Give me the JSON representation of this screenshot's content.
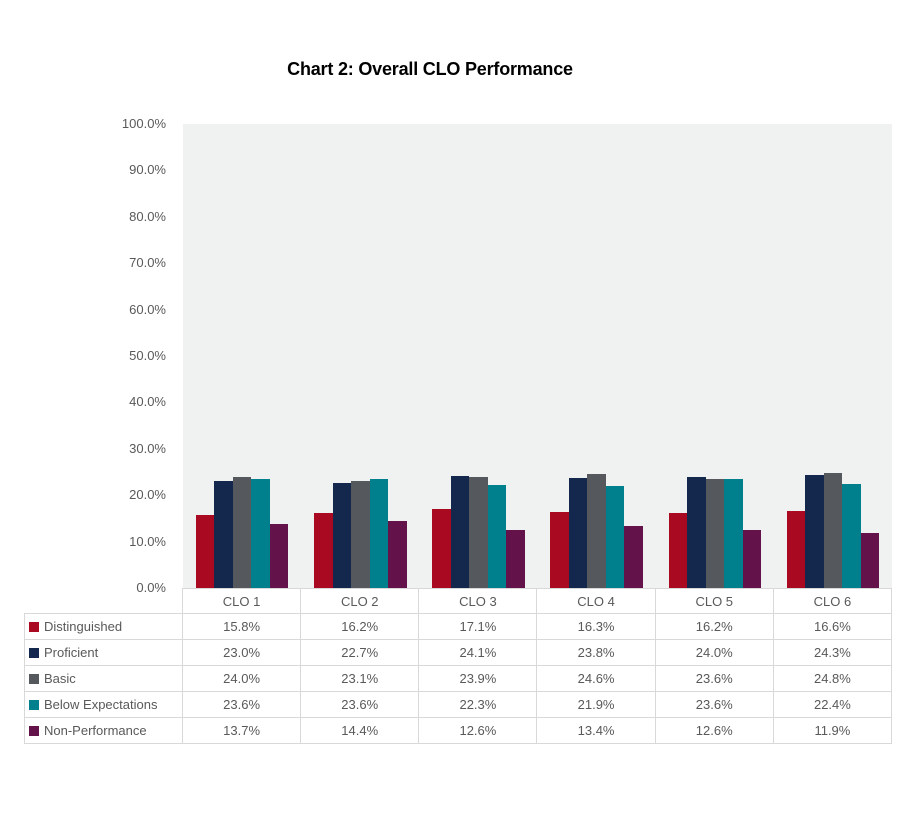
{
  "chart_data": {
    "type": "bar",
    "title": "Chart 2: Overall CLO Performance",
    "categories": [
      "CLO 1",
      "CLO 2",
      "CLO 3",
      "CLO 4",
      "CLO 5",
      "CLO 6"
    ],
    "series": [
      {
        "name": "Distinguished",
        "color": "#A90A21",
        "values": [
          15.8,
          16.2,
          17.1,
          16.3,
          16.2,
          16.6
        ]
      },
      {
        "name": "Proficient",
        "color": "#14274C",
        "values": [
          23.0,
          22.7,
          24.1,
          23.8,
          24.0,
          24.3
        ]
      },
      {
        "name": "Basic",
        "color": "#55585C",
        "values": [
          24.0,
          23.1,
          23.9,
          24.6,
          23.6,
          24.8
        ]
      },
      {
        "name": "Below Expectations",
        "color": "#00808D",
        "values": [
          23.6,
          23.6,
          22.3,
          21.9,
          23.6,
          22.4
        ]
      },
      {
        "name": "Non-Performance",
        "color": "#64124A",
        "values": [
          13.7,
          14.4,
          12.6,
          13.4,
          12.6,
          11.9
        ]
      }
    ],
    "y_ticks": [
      "100.0%",
      "90.0%",
      "80.0%",
      "70.0%",
      "60.0%",
      "50.0%",
      "40.0%",
      "30.0%",
      "20.0%",
      "10.0%",
      "0.0%"
    ],
    "ylim": [
      0,
      100
    ],
    "value_suffix": "%",
    "grid": false,
    "legend_position": "table-left-column",
    "plot_bg": "#F0F1F1",
    "axis_text_color": "#595959",
    "table_border_color": "#D9D9D9"
  }
}
